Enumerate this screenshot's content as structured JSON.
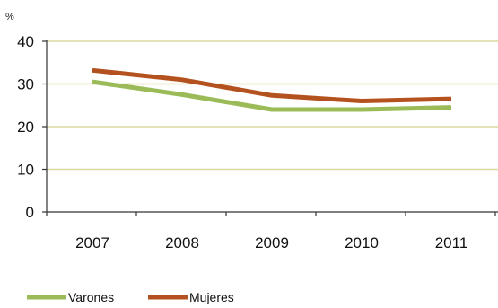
{
  "chart_data": {
    "type": "line",
    "title": "",
    "xlabel": "",
    "ylabel": "%",
    "x": [
      "2007",
      "2008",
      "2009",
      "2010",
      "2011"
    ],
    "yticks": [
      "0",
      "10",
      "20",
      "30",
      "40"
    ],
    "ylim": [
      0,
      40
    ],
    "grid": true,
    "legend_position": "bottom-left",
    "series": [
      {
        "name": "Varones",
        "values": [
          30.5,
          27.5,
          24.0,
          24.0,
          24.5
        ],
        "color": "#9bbb59"
      },
      {
        "name": "Mujeres",
        "values": [
          33.2,
          31.0,
          27.3,
          26.0,
          26.5
        ],
        "color": "#b4521f"
      }
    ]
  },
  "colors": {
    "grid": "#ddd8a0",
    "axis": "#333333"
  }
}
